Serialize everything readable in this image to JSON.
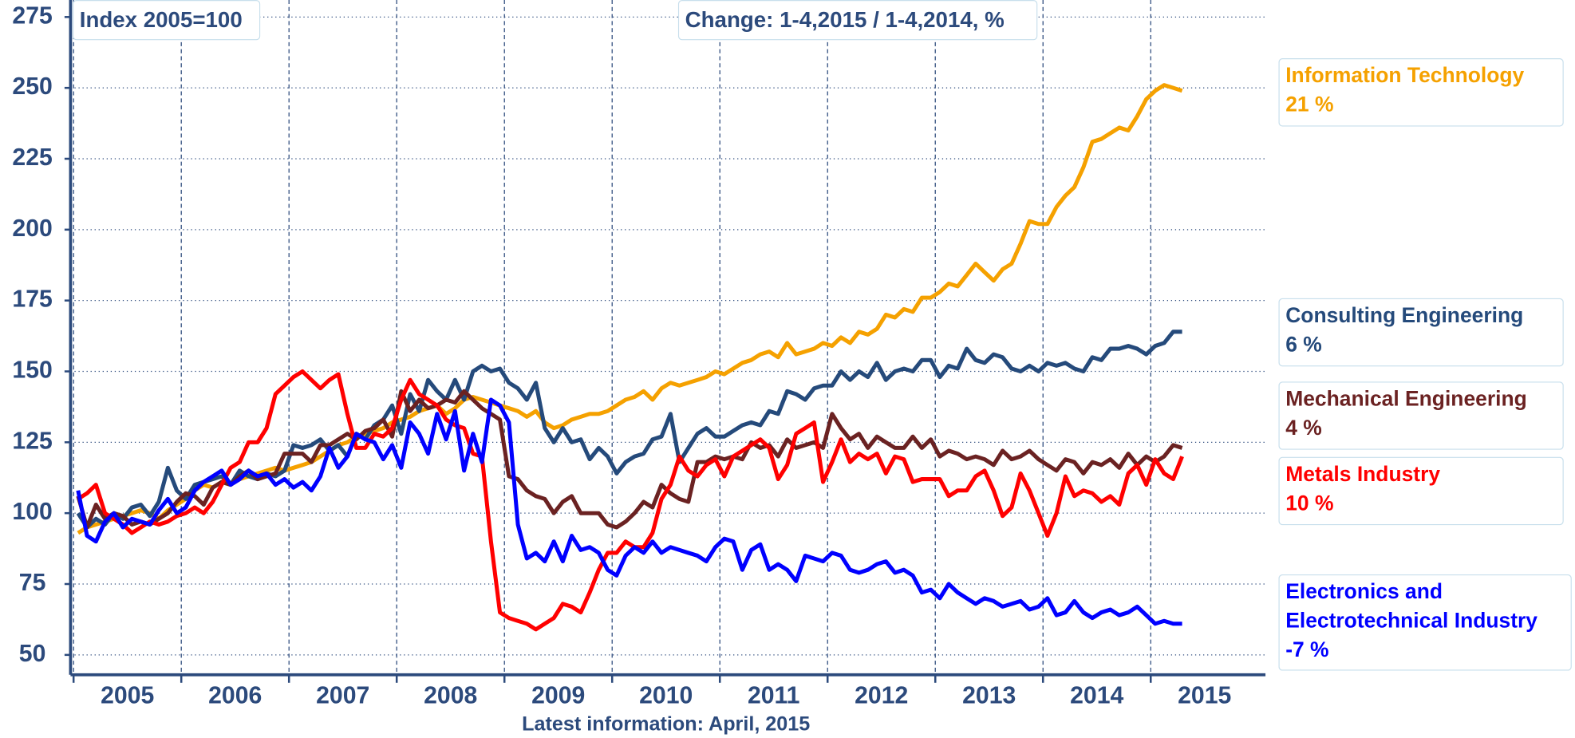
{
  "chart_data": {
    "type": "line",
    "annotations": [
      "Index 2005=100",
      "Change: 1-4,2015 / 1-4,2014, %"
    ],
    "x_label": "Latest information: April, 2015",
    "categories": [
      null,
      null,
      null,
      null,
      null,
      null,
      "2005",
      null,
      null,
      null,
      null,
      null,
      null,
      null,
      null,
      null,
      null,
      null,
      "2006",
      null,
      null,
      null,
      null,
      null,
      null,
      null,
      null,
      null,
      null,
      null,
      "2007",
      null,
      null,
      null,
      null,
      null,
      null,
      null,
      null,
      null,
      null,
      null,
      "2008",
      null,
      null,
      null,
      null,
      null,
      null,
      null,
      null,
      null,
      null,
      null,
      "2009",
      null,
      null,
      null,
      null,
      null,
      null,
      null,
      null,
      null,
      null,
      null,
      "2010",
      null,
      null,
      null,
      null,
      null,
      null,
      null,
      null,
      null,
      null,
      null,
      "2011",
      null,
      null,
      null,
      null,
      null,
      null,
      null,
      null,
      null,
      null,
      null,
      "2012",
      null,
      null,
      null,
      null,
      null,
      null,
      null,
      null,
      null,
      null,
      null,
      "2013",
      null,
      null,
      null,
      null,
      null,
      null,
      null,
      null,
      null,
      null,
      null,
      "2014",
      null,
      null,
      null,
      null,
      null,
      null,
      null,
      null,
      null,
      null,
      null,
      "2015",
      null,
      null,
      null,
      null,
      null
    ],
    "ylim": [
      43,
      281
    ],
    "yticks": [
      50,
      75,
      100,
      125,
      150,
      175,
      200,
      225,
      250,
      275
    ],
    "grid": true,
    "series": [
      {
        "name": "Information Technology",
        "change": "21 %",
        "color": "#f5a100",
        "values": [
          93,
          95,
          96,
          97,
          98,
          99,
          100,
          101,
          100,
          98,
          101,
          103,
          105,
          108,
          110,
          109,
          111,
          110,
          112,
          113,
          114,
          115,
          116,
          115,
          116,
          117,
          118,
          120,
          122,
          124,
          125,
          127,
          128,
          129,
          130,
          132,
          133,
          134,
          136,
          137,
          138,
          135,
          137,
          140,
          141,
          140,
          139,
          138,
          137,
          136,
          134,
          136,
          132,
          130,
          131,
          133,
          134,
          135,
          135,
          136,
          138,
          140,
          141,
          143,
          140,
          144,
          146,
          145,
          146,
          147,
          148,
          150,
          149,
          151,
          153,
          154,
          156,
          157,
          155,
          160,
          156,
          157,
          158,
          160,
          159,
          162,
          160,
          164,
          163,
          165,
          170,
          169,
          172,
          171,
          176,
          176,
          178,
          181,
          180,
          184,
          188,
          185,
          182,
          186,
          188,
          195,
          203,
          202,
          202,
          208,
          212,
          215,
          222,
          231,
          232,
          234,
          236,
          235,
          240,
          246,
          249,
          251,
          250,
          249,
          null,
          null,
          null,
          null,
          null,
          null,
          null,
          null
        ]
      },
      {
        "name": "Consulting Engineering",
        "change": "6 %",
        "color": "#254a7b",
        "values": [
          100,
          95,
          98,
          96,
          100,
          98,
          102,
          103,
          99,
          104,
          116,
          108,
          105,
          110,
          111,
          112,
          113,
          110,
          115,
          113,
          112,
          114,
          113,
          115,
          124,
          123,
          124,
          126,
          122,
          124,
          120,
          128,
          126,
          131,
          133,
          138,
          128,
          142,
          136,
          147,
          143,
          140,
          147,
          140,
          150,
          152,
          150,
          151,
          146,
          144,
          140,
          146,
          130,
          125,
          130,
          125,
          126,
          119,
          123,
          120,
          114,
          118,
          120,
          121,
          126,
          127,
          135,
          118,
          123,
          128,
          130,
          127,
          127,
          129,
          131,
          132,
          131,
          136,
          135,
          143,
          142,
          140,
          144,
          145,
          145,
          150,
          147,
          150,
          148,
          153,
          147,
          150,
          151,
          150,
          154,
          154,
          148,
          152,
          151,
          158,
          154,
          153,
          156,
          155,
          151,
          150,
          152,
          150,
          153,
          152,
          153,
          151,
          150,
          155,
          154,
          158,
          158,
          159,
          158,
          156,
          159,
          160,
          164,
          164,
          null,
          null,
          null,
          null,
          null,
          null,
          null,
          null
        ]
      },
      {
        "name": "Mechanical Engineering",
        "change": "4 %",
        "color": "#6b2222",
        "values": [
          106,
          95,
          103,
          98,
          100,
          99,
          96,
          97,
          96,
          98,
          100,
          104,
          107,
          106,
          103,
          109,
          111,
          110,
          113,
          115,
          112,
          113,
          114,
          121,
          121,
          121,
          118,
          124,
          124,
          126,
          128,
          126,
          129,
          130,
          133,
          127,
          143,
          136,
          140,
          137,
          138,
          140,
          139,
          143,
          140,
          137,
          135,
          133,
          113,
          112,
          108,
          106,
          105,
          100,
          104,
          106,
          100,
          100,
          100,
          96,
          95,
          97,
          100,
          104,
          102,
          110,
          107,
          105,
          104,
          118,
          118,
          120,
          119,
          120,
          119,
          125,
          123,
          124,
          120,
          126,
          123,
          124,
          125,
          123,
          135,
          130,
          126,
          128,
          123,
          127,
          125,
          123,
          123,
          127,
          123,
          126,
          120,
          122,
          121,
          119,
          120,
          119,
          117,
          122,
          119,
          120,
          122,
          119,
          117,
          115,
          119,
          118,
          114,
          118,
          117,
          119,
          116,
          121,
          117,
          120,
          118,
          120,
          124,
          123,
          null,
          null,
          null,
          null,
          null,
          null,
          null,
          null
        ]
      },
      {
        "name": "Metals Industry",
        "change": "10 %",
        "color": "#ff0000",
        "values": [
          105,
          107,
          110,
          100,
          98,
          96,
          93,
          95,
          97,
          96,
          97,
          99,
          100,
          102,
          100,
          104,
          110,
          116,
          118,
          125,
          125,
          130,
          142,
          145,
          148,
          150,
          147,
          144,
          147,
          149,
          135,
          123,
          123,
          128,
          127,
          130,
          140,
          147,
          142,
          140,
          138,
          133,
          131,
          130,
          121,
          120,
          90,
          65,
          63,
          62,
          61,
          59,
          61,
          63,
          68,
          67,
          65,
          72,
          80,
          86,
          86,
          90,
          88,
          88,
          93,
          105,
          110,
          120,
          115,
          113,
          117,
          119,
          113,
          120,
          122,
          124,
          126,
          123,
          112,
          117,
          128,
          130,
          132,
          111,
          118,
          126,
          118,
          121,
          119,
          121,
          114,
          120,
          119,
          111,
          112,
          112,
          112,
          106,
          108,
          108,
          113,
          115,
          108,
          99,
          102,
          114,
          108,
          100,
          92,
          100,
          113,
          106,
          108,
          107,
          104,
          106,
          103,
          114,
          117,
          110,
          119,
          114,
          112,
          120,
          null,
          null,
          null,
          null,
          null,
          null,
          null,
          null
        ]
      },
      {
        "name": "Electronics and Electrotechnical Industry",
        "change": "-7 %",
        "color": "#0000ff",
        "values": [
          108,
          92,
          90,
          97,
          100,
          95,
          98,
          97,
          96,
          101,
          105,
          100,
          102,
          108,
          111,
          113,
          115,
          110,
          112,
          115,
          113,
          114,
          110,
          112,
          109,
          111,
          108,
          113,
          123,
          116,
          120,
          128,
          126,
          125,
          119,
          124,
          116,
          132,
          128,
          121,
          135,
          126,
          136,
          115,
          128,
          118,
          140,
          138,
          132,
          96,
          84,
          86,
          83,
          90,
          83,
          92,
          87,
          88,
          86,
          80,
          78,
          85,
          88,
          86,
          90,
          86,
          88,
          87,
          86,
          85,
          83,
          88,
          91,
          90,
          80,
          87,
          89,
          80,
          82,
          80,
          76,
          85,
          84,
          83,
          86,
          85,
          80,
          79,
          80,
          82,
          83,
          79,
          80,
          78,
          72,
          73,
          70,
          75,
          72,
          70,
          68,
          70,
          69,
          67,
          68,
          69,
          66,
          67,
          70,
          64,
          65,
          69,
          65,
          63,
          65,
          66,
          64,
          65,
          67,
          64,
          61,
          62,
          61,
          61,
          null,
          null,
          null,
          null,
          null,
          null,
          null,
          null
        ]
      }
    ]
  }
}
